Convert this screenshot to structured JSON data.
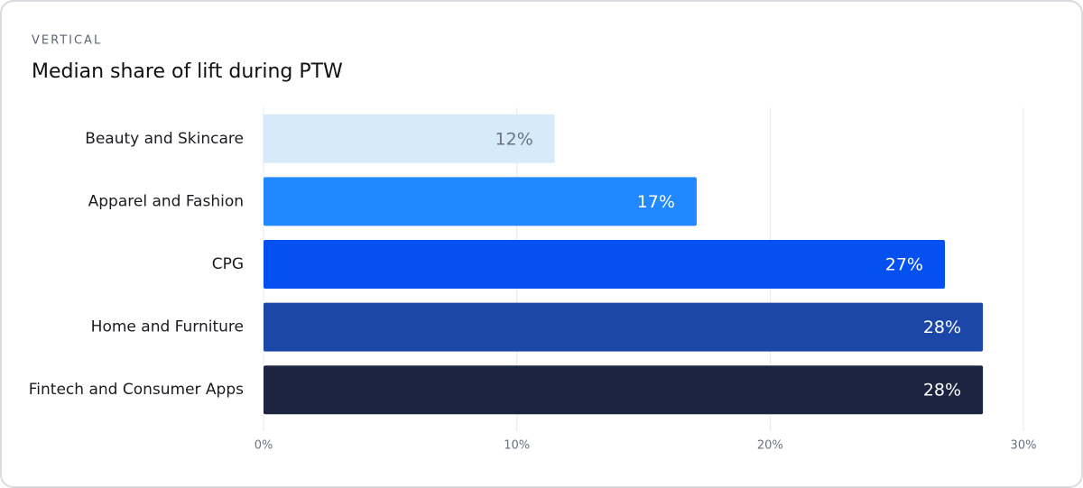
{
  "chart_data": {
    "type": "barh",
    "overline": "VERTICAL",
    "title": "Median share of lift during PTW",
    "categories": [
      "Beauty and Skincare",
      "Apparel and Fashion",
      "CPG",
      "Home and Furniture",
      "Fintech and Consumer Apps"
    ],
    "values": [
      11.5,
      17.1,
      26.9,
      28.4,
      28.4
    ],
    "value_labels": [
      "12%",
      "17%",
      "27%",
      "28%",
      "28%"
    ],
    "colors": [
      "#d6eafc",
      "#2188ff",
      "#0550f0",
      "#1a47a8",
      "#1b2542"
    ],
    "xlim": [
      0,
      30
    ],
    "xticks": [
      {
        "value": 0,
        "label": "0%"
      },
      {
        "value": 10,
        "label": "10%"
      },
      {
        "value": 20,
        "label": "20%"
      },
      {
        "value": 30,
        "label": "30%"
      }
    ],
    "grid": true
  }
}
